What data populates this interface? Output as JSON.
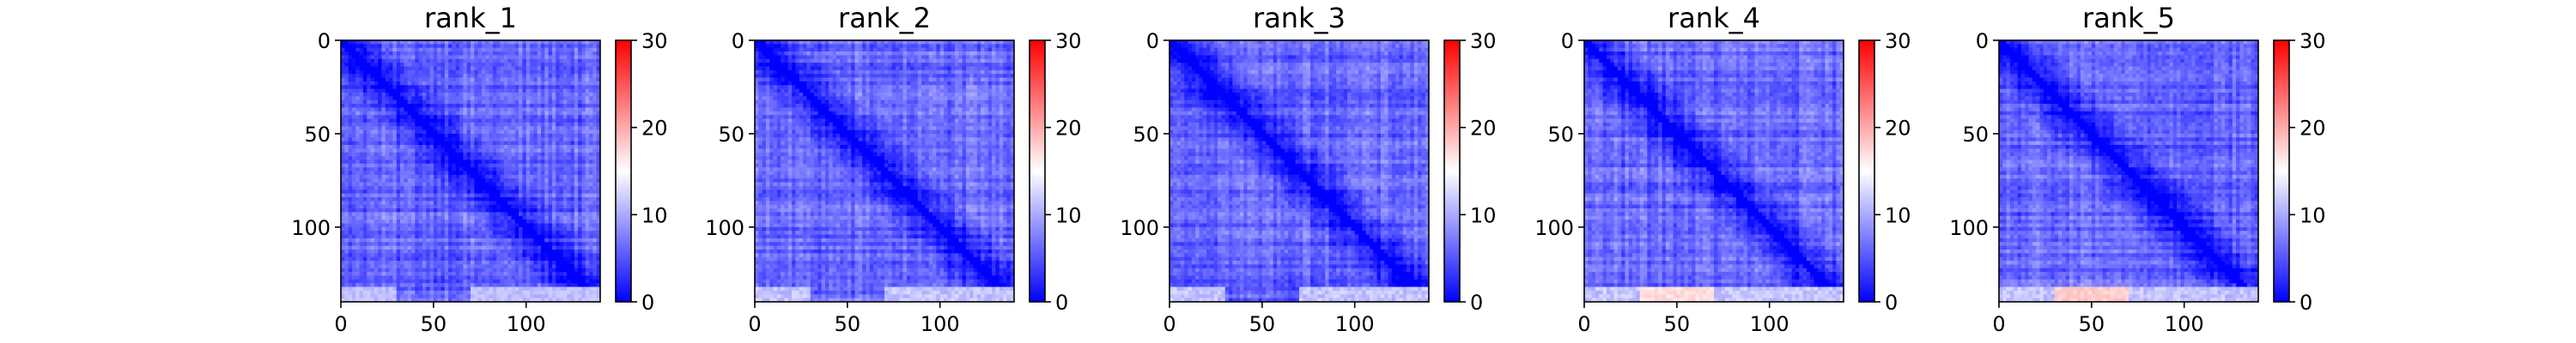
{
  "chart_data": [
    {
      "type": "heatmap",
      "title": "rank_1",
      "xlim": [
        0,
        140
      ],
      "ylim": [
        140,
        0
      ],
      "xticks": [
        0,
        50,
        100
      ],
      "yticks": [
        0,
        50,
        100
      ],
      "xtick_labels": [
        "0",
        "50",
        "100"
      ],
      "ytick_labels": [
        "0",
        "50",
        "100"
      ],
      "colorbar": {
        "range": [
          0,
          30
        ],
        "ticks": [
          0,
          10,
          20,
          30
        ],
        "tick_labels": [
          "0",
          "10",
          "20",
          "30"
        ],
        "colormap": "bwr"
      },
      "description_values": {
        "diagonal": 0,
        "typical_off_diagonal": 6,
        "max_visible": 12
      }
    },
    {
      "type": "heatmap",
      "title": "rank_2",
      "xlim": [
        0,
        140
      ],
      "ylim": [
        140,
        0
      ],
      "xticks": [
        0,
        50,
        100
      ],
      "yticks": [
        0,
        50,
        100
      ],
      "xtick_labels": [
        "0",
        "50",
        "100"
      ],
      "ytick_labels": [
        "0",
        "50",
        "100"
      ],
      "colorbar": {
        "range": [
          0,
          30
        ],
        "ticks": [
          0,
          10,
          20,
          30
        ],
        "tick_labels": [
          "0",
          "10",
          "20",
          "30"
        ],
        "colormap": "bwr"
      },
      "description_values": {
        "diagonal": 0,
        "typical_off_diagonal": 6,
        "max_visible": 13
      }
    },
    {
      "type": "heatmap",
      "title": "rank_3",
      "xlim": [
        0,
        140
      ],
      "ylim": [
        140,
        0
      ],
      "xticks": [
        0,
        50,
        100
      ],
      "yticks": [
        0,
        50,
        100
      ],
      "xtick_labels": [
        "0",
        "50",
        "100"
      ],
      "ytick_labels": [
        "0",
        "50",
        "100"
      ],
      "colorbar": {
        "range": [
          0,
          30
        ],
        "ticks": [
          0,
          10,
          20,
          30
        ],
        "tick_labels": [
          "0",
          "10",
          "20",
          "30"
        ],
        "colormap": "bwr"
      },
      "description_values": {
        "diagonal": 0,
        "typical_off_diagonal": 6,
        "max_visible": 13
      }
    },
    {
      "type": "heatmap",
      "title": "rank_4",
      "xlim": [
        0,
        140
      ],
      "ylim": [
        140,
        0
      ],
      "xticks": [
        0,
        50,
        100
      ],
      "yticks": [
        0,
        50,
        100
      ],
      "xtick_labels": [
        "0",
        "50",
        "100"
      ],
      "ytick_labels": [
        "0",
        "50",
        "100"
      ],
      "colorbar": {
        "range": [
          0,
          30
        ],
        "ticks": [
          0,
          10,
          20,
          30
        ],
        "tick_labels": [
          "0",
          "10",
          "20",
          "30"
        ],
        "colormap": "bwr"
      },
      "description_values": {
        "diagonal": 0,
        "typical_off_diagonal": 6,
        "max_visible": 18
      }
    },
    {
      "type": "heatmap",
      "title": "rank_5",
      "xlim": [
        0,
        140
      ],
      "ylim": [
        140,
        0
      ],
      "xticks": [
        0,
        50,
        100
      ],
      "yticks": [
        0,
        50,
        100
      ],
      "xtick_labels": [
        "0",
        "50",
        "100"
      ],
      "ytick_labels": [
        "0",
        "50",
        "100"
      ],
      "colorbar": {
        "range": [
          0,
          30
        ],
        "ticks": [
          0,
          10,
          20,
          30
        ],
        "tick_labels": [
          "0",
          "10",
          "20",
          "30"
        ],
        "colormap": "bwr"
      },
      "description_values": {
        "diagonal": 0,
        "typical_off_diagonal": 6,
        "max_visible": 19
      }
    }
  ]
}
